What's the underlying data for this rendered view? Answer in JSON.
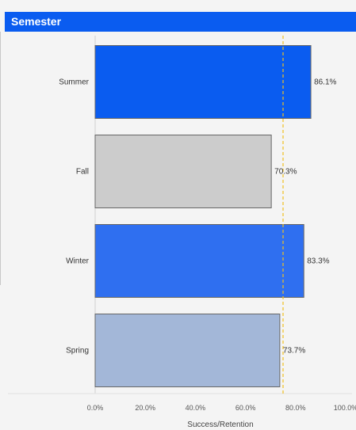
{
  "header": {
    "title": "Semester"
  },
  "chart_data": {
    "type": "bar",
    "orientation": "horizontal",
    "title": "",
    "xlabel": "Success/Retention",
    "ylabel": "",
    "categories": [
      "Summer",
      "Fall",
      "Winter",
      "Spring"
    ],
    "values": [
      86.1,
      70.3,
      83.3,
      73.7
    ],
    "value_labels": [
      "86.1%",
      "70.3%",
      "83.3%",
      "73.7%"
    ],
    "bar_colors": [
      "#0a5cf0",
      "#cccccc",
      "#2f6ff0",
      "#a3b7d8"
    ],
    "xlim": [
      0,
      100
    ],
    "xticks": [
      0,
      20,
      40,
      60,
      80,
      100
    ],
    "xtick_labels": [
      "0.0%",
      "20.0%",
      "40.0%",
      "60.0%",
      "80.0%",
      "100.0%"
    ],
    "reference_line": {
      "value": 75,
      "color": "#f0c020",
      "style": "dashed"
    },
    "grid": false,
    "legend": "none"
  }
}
